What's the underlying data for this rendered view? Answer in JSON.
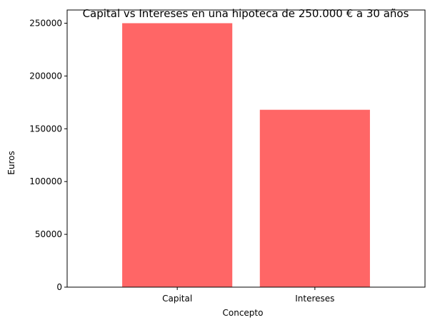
{
  "chart_data": {
    "type": "bar",
    "title": "Capital vs Intereses en una hipoteca de 250.000 € a 30 años",
    "xlabel": "Concepto",
    "ylabel": "Euros",
    "categories": [
      "Capital",
      "Intereses"
    ],
    "values": [
      250000,
      168000
    ],
    "ylim": [
      0,
      262500
    ],
    "yticks": [
      0,
      50000,
      100000,
      150000,
      200000,
      250000
    ],
    "ytick_labels": [
      "0",
      "50000",
      "100000",
      "150000",
      "200000",
      "250000"
    ],
    "bar_color": "#ff6666",
    "grid": false,
    "legend": "none"
  }
}
